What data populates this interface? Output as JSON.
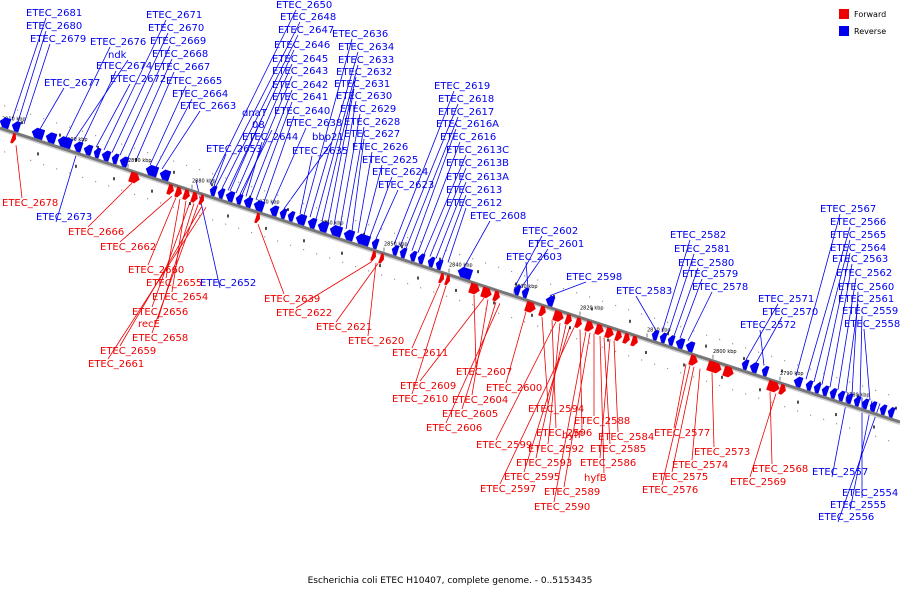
{
  "colors": {
    "forward": "#ee0000",
    "reverse": "#0000ee",
    "axis": "#777777"
  },
  "legend": [
    {
      "label": "Forward",
      "strand": "forward"
    },
    {
      "label": "Reverse",
      "strand": "reverse"
    }
  ],
  "caption": "Escherichia coli ETEC H10407, complete genome. - 0..5153435",
  "ticks": [
    "2910 kbp",
    "2900 kbp",
    "2890 kbp",
    "2880 kbp",
    "2870 kbp",
    "2860 kbp",
    "2850 kbp",
    "2840 kbp",
    "2830 kbp",
    "2820 kbp",
    "2810 kbp",
    "2800 kbp",
    "2790 kbp",
    "2780 kbp"
  ],
  "reverse_labels": [
    "ETEC_2681",
    "ETEC_2680",
    "ETEC_2679",
    "ETEC_2677",
    "ETEC_2676",
    "ndk",
    "ETEC_2674",
    "ETEC_2672",
    "ETEC_2671",
    "ETEC_2670",
    "ETEC_2669",
    "ETEC_2668",
    "ETEC_2667",
    "ETEC_2665",
    "ETEC_2664",
    "ETEC_2663",
    "ETEC_2650",
    "ETEC_2648",
    "ETEC_2647",
    "ETEC_2646",
    "ETEC_2645",
    "ETEC_2643",
    "ETEC_2642",
    "ETEC_2641",
    "ETEC_2640",
    "dnaT",
    "08",
    "ETEC_2644",
    "ETEC_2638",
    "bbp21",
    "ETEC_2635",
    "ETEC_2653",
    "ETEC_2636",
    "ETEC_2634",
    "ETEC_2633",
    "ETEC_2632",
    "ETEC_2631",
    "ETEC_2630",
    "ETEC_2629",
    "ETEC_2628",
    "ETEC_2627",
    "ETEC_2626",
    "ETEC_2625",
    "ETEC_2624",
    "ETEC_2623",
    "ETEC_2619",
    "ETEC_2618",
    "ETEC_2617",
    "ETEC_2616A",
    "ETEC_2616",
    "ETEC_2613C",
    "ETEC_2613B",
    "ETEC_2613A",
    "ETEC_2613",
    "ETEC_2612",
    "ETEC_2608",
    "ETEC_2602",
    "ETEC_2601",
    "ETEC_2603",
    "ETEC_2598",
    "ETEC_2583",
    "ETEC_2582",
    "ETEC_2581",
    "ETEC_2580",
    "ETEC_2579",
    "ETEC_2578",
    "ETEC_2571",
    "ETEC_2570",
    "ETEC_2572",
    "ETEC_2567",
    "ETEC_2566",
    "ETEC_2565",
    "ETEC_2564",
    "ETEC_2563",
    "ETEC_2562",
    "ETEC_2561",
    "ETEC_2560",
    "ETEC_2559",
    "ETEC_2558",
    "ETEC_2673",
    "ETEC_2652",
    "ETEC_2557",
    "ETEC_2554",
    "ETEC_2555",
    "ETEC_2556"
  ],
  "forward_labels": [
    "ETEC_2678",
    "ETEC_2666",
    "ETEC_2662",
    "ETEC_2660",
    "ETEC_2655",
    "ETEC_2654",
    "ETEC_2656",
    "recE",
    "ETEC_2658",
    "ETEC_2659",
    "ETEC_2661",
    "ETEC_2639",
    "ETEC_2622",
    "ETEC_2621",
    "ETEC_2620",
    "ETEC_2611",
    "ETEC_2607",
    "ETEC_2609",
    "ETEC_2610",
    "ETEC_2600",
    "ETEC_2604",
    "ETEC_2605",
    "ETEC_2606",
    "ETEC_2594",
    "ETEC_2596",
    "ETEC_2599",
    "ETEC_2592",
    "ETEC_2593",
    "ETEC_2595",
    "ETEC_2597",
    "hyfF",
    "ETEC_2588",
    "ETEC_2584",
    "ETEC_2585",
    "ETEC_2586",
    "hyfB",
    "ETEC_2589",
    "ETEC_2590",
    "ETEC_2577",
    "ETEC_2573",
    "ETEC_2574",
    "ETEC_2575",
    "ETEC_2576",
    "ETEC_2568",
    "ETEC_2569"
  ]
}
